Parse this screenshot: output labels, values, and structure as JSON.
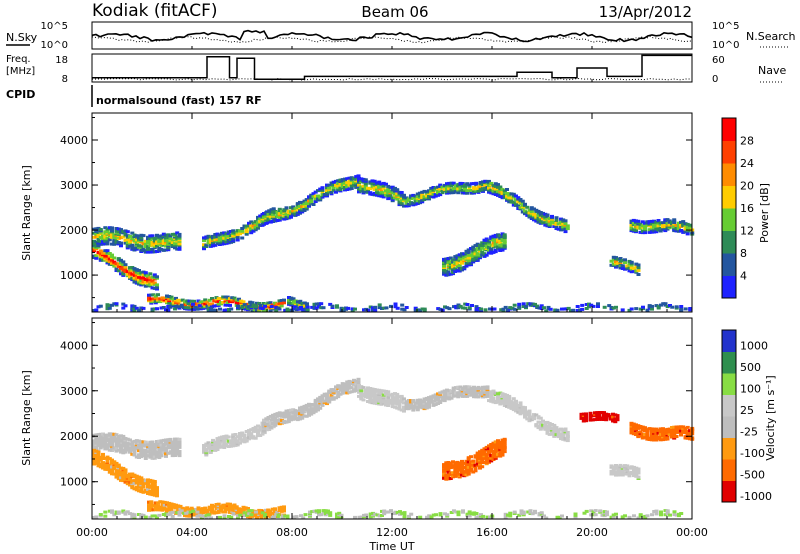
{
  "header": {
    "station": "Kodiak (fitACF)",
    "beam": "Beam 06",
    "date": "13/Apr/2012",
    "program": "normalsound (fast) 157 RF"
  },
  "summary_labels": {
    "nsky": "N.Sky",
    "nsearch": "N.Search",
    "freq_line1": "Freq.",
    "freq_line2": "[MHz]",
    "nave": "Nave",
    "cpid": "CPID"
  },
  "noise_panel": {
    "left_ticks": [
      "10^5",
      "10^0"
    ],
    "right_ticks": [
      "10^5",
      "10^0"
    ]
  },
  "freq_panel": {
    "left_ticks": [
      "18",
      "8"
    ],
    "right_ticks": [
      "60",
      "0"
    ]
  },
  "colors": {
    "power": [
      "#1e22ff",
      "#23569f",
      "#2e8b57",
      "#66cc33",
      "#ffcc00",
      "#ff8c00",
      "#ff4000",
      "#ff0000"
    ],
    "velocity": [
      "#e10000",
      "#ff6a00",
      "#ff9a10",
      "#bebebe",
      "#c8c8c8",
      "#88dd44",
      "#2f8f4f",
      "#2233cc"
    ],
    "ground": "#888888"
  },
  "chart_data": [
    {
      "type": "heatmap",
      "name": "power",
      "xlabel": "",
      "ylabel": "Slant Range [km]",
      "xlim": [
        0,
        24
      ],
      "ylim": [
        180,
        4600
      ],
      "yticks": [
        "1000",
        "2000",
        "3000",
        "4000"
      ],
      "colorbar_label": "Power [dB]",
      "colorbar_ticks": [
        "4",
        "8",
        "12",
        "16",
        "20",
        "24",
        "28"
      ],
      "traces": [
        {
          "start": 0.0,
          "end": 3.5,
          "r0": 1850,
          "r1": 1700,
          "w": 380
        },
        {
          "start": 0.0,
          "end": 2.6,
          "r0": 1500,
          "r1": 800,
          "w": 320
        },
        {
          "start": 2.2,
          "end": 7.6,
          "r0": 430,
          "r1": 330,
          "w": 200
        },
        {
          "start": 7.8,
          "end": 8.6,
          "r0": 380,
          "r1": 320,
          "w": 160
        },
        {
          "start": 4.4,
          "end": 7.2,
          "r0": 1650,
          "r1": 2300,
          "w": 250
        },
        {
          "start": 6.8,
          "end": 10.6,
          "r0": 2200,
          "r1": 3150,
          "w": 260
        },
        {
          "start": 10.6,
          "end": 12.4,
          "r0": 3050,
          "r1": 2650,
          "w": 300
        },
        {
          "start": 12.5,
          "end": 15.8,
          "r0": 2700,
          "r1": 3050,
          "w": 220
        },
        {
          "start": 15.8,
          "end": 19.0,
          "r0": 2950,
          "r1": 2000,
          "w": 260
        },
        {
          "start": 14.0,
          "end": 16.5,
          "r0": 1200,
          "r1": 1750,
          "w": 380
        },
        {
          "start": 20.7,
          "end": 21.8,
          "r0": 1250,
          "r1": 1150,
          "w": 230
        },
        {
          "start": 21.5,
          "end": 24.0,
          "r0": 2150,
          "r1": 2000,
          "w": 240
        },
        {
          "start": 0.0,
          "end": 24.0,
          "r0": 260,
          "r1": 260,
          "w": 90
        }
      ]
    },
    {
      "type": "heatmap",
      "name": "velocity",
      "xlabel": "Time UT",
      "ylabel": "Slant Range [km]",
      "xlim": [
        0,
        24
      ],
      "ylim": [
        180,
        4600
      ],
      "xticks": [
        "00:00",
        "04:00",
        "08:00",
        "12:00",
        "16:00",
        "20:00",
        "00:00"
      ],
      "yticks": [
        "1000",
        "2000",
        "3000",
        "4000"
      ],
      "colorbar_label": "Velocity [m s⁻¹]",
      "colorbar_ticks": [
        "1000",
        "500",
        "100",
        "25",
        "-25",
        "-100",
        "-500",
        "-1000"
      ],
      "traces": [
        {
          "start": 0.0,
          "end": 3.5,
          "r0": 1850,
          "r1": 1700,
          "w": 380,
          "c": 3
        },
        {
          "start": 0.0,
          "end": 2.6,
          "r0": 1500,
          "r1": 800,
          "w": 320,
          "c": 2
        },
        {
          "start": 2.2,
          "end": 7.6,
          "r0": 430,
          "r1": 330,
          "w": 200,
          "c": 2
        },
        {
          "start": 4.4,
          "end": 7.2,
          "r0": 1650,
          "r1": 2300,
          "w": 250,
          "c": 4
        },
        {
          "start": 6.8,
          "end": 10.6,
          "r0": 2200,
          "r1": 3150,
          "w": 260,
          "c": 3
        },
        {
          "start": 10.6,
          "end": 12.4,
          "r0": 3050,
          "r1": 2650,
          "w": 300,
          "c": 4
        },
        {
          "start": 12.5,
          "end": 15.8,
          "r0": 2700,
          "r1": 3050,
          "w": 220,
          "c": 3
        },
        {
          "start": 15.8,
          "end": 19.0,
          "r0": 2950,
          "r1": 2000,
          "w": 260,
          "c": 4
        },
        {
          "start": 14.0,
          "end": 16.5,
          "r0": 1200,
          "r1": 1750,
          "w": 380,
          "c": 1
        },
        {
          "start": 20.7,
          "end": 21.8,
          "r0": 1250,
          "r1": 1150,
          "w": 230,
          "c": 4
        },
        {
          "start": 21.5,
          "end": 24.0,
          "r0": 2150,
          "r1": 2000,
          "w": 240,
          "c": 1
        },
        {
          "start": 19.5,
          "end": 21.0,
          "r0": 2450,
          "r1": 2350,
          "w": 160,
          "c": 0
        },
        {
          "start": 0.0,
          "end": 24.0,
          "r0": 260,
          "r1": 260,
          "w": 90,
          "c": 5
        }
      ]
    }
  ]
}
